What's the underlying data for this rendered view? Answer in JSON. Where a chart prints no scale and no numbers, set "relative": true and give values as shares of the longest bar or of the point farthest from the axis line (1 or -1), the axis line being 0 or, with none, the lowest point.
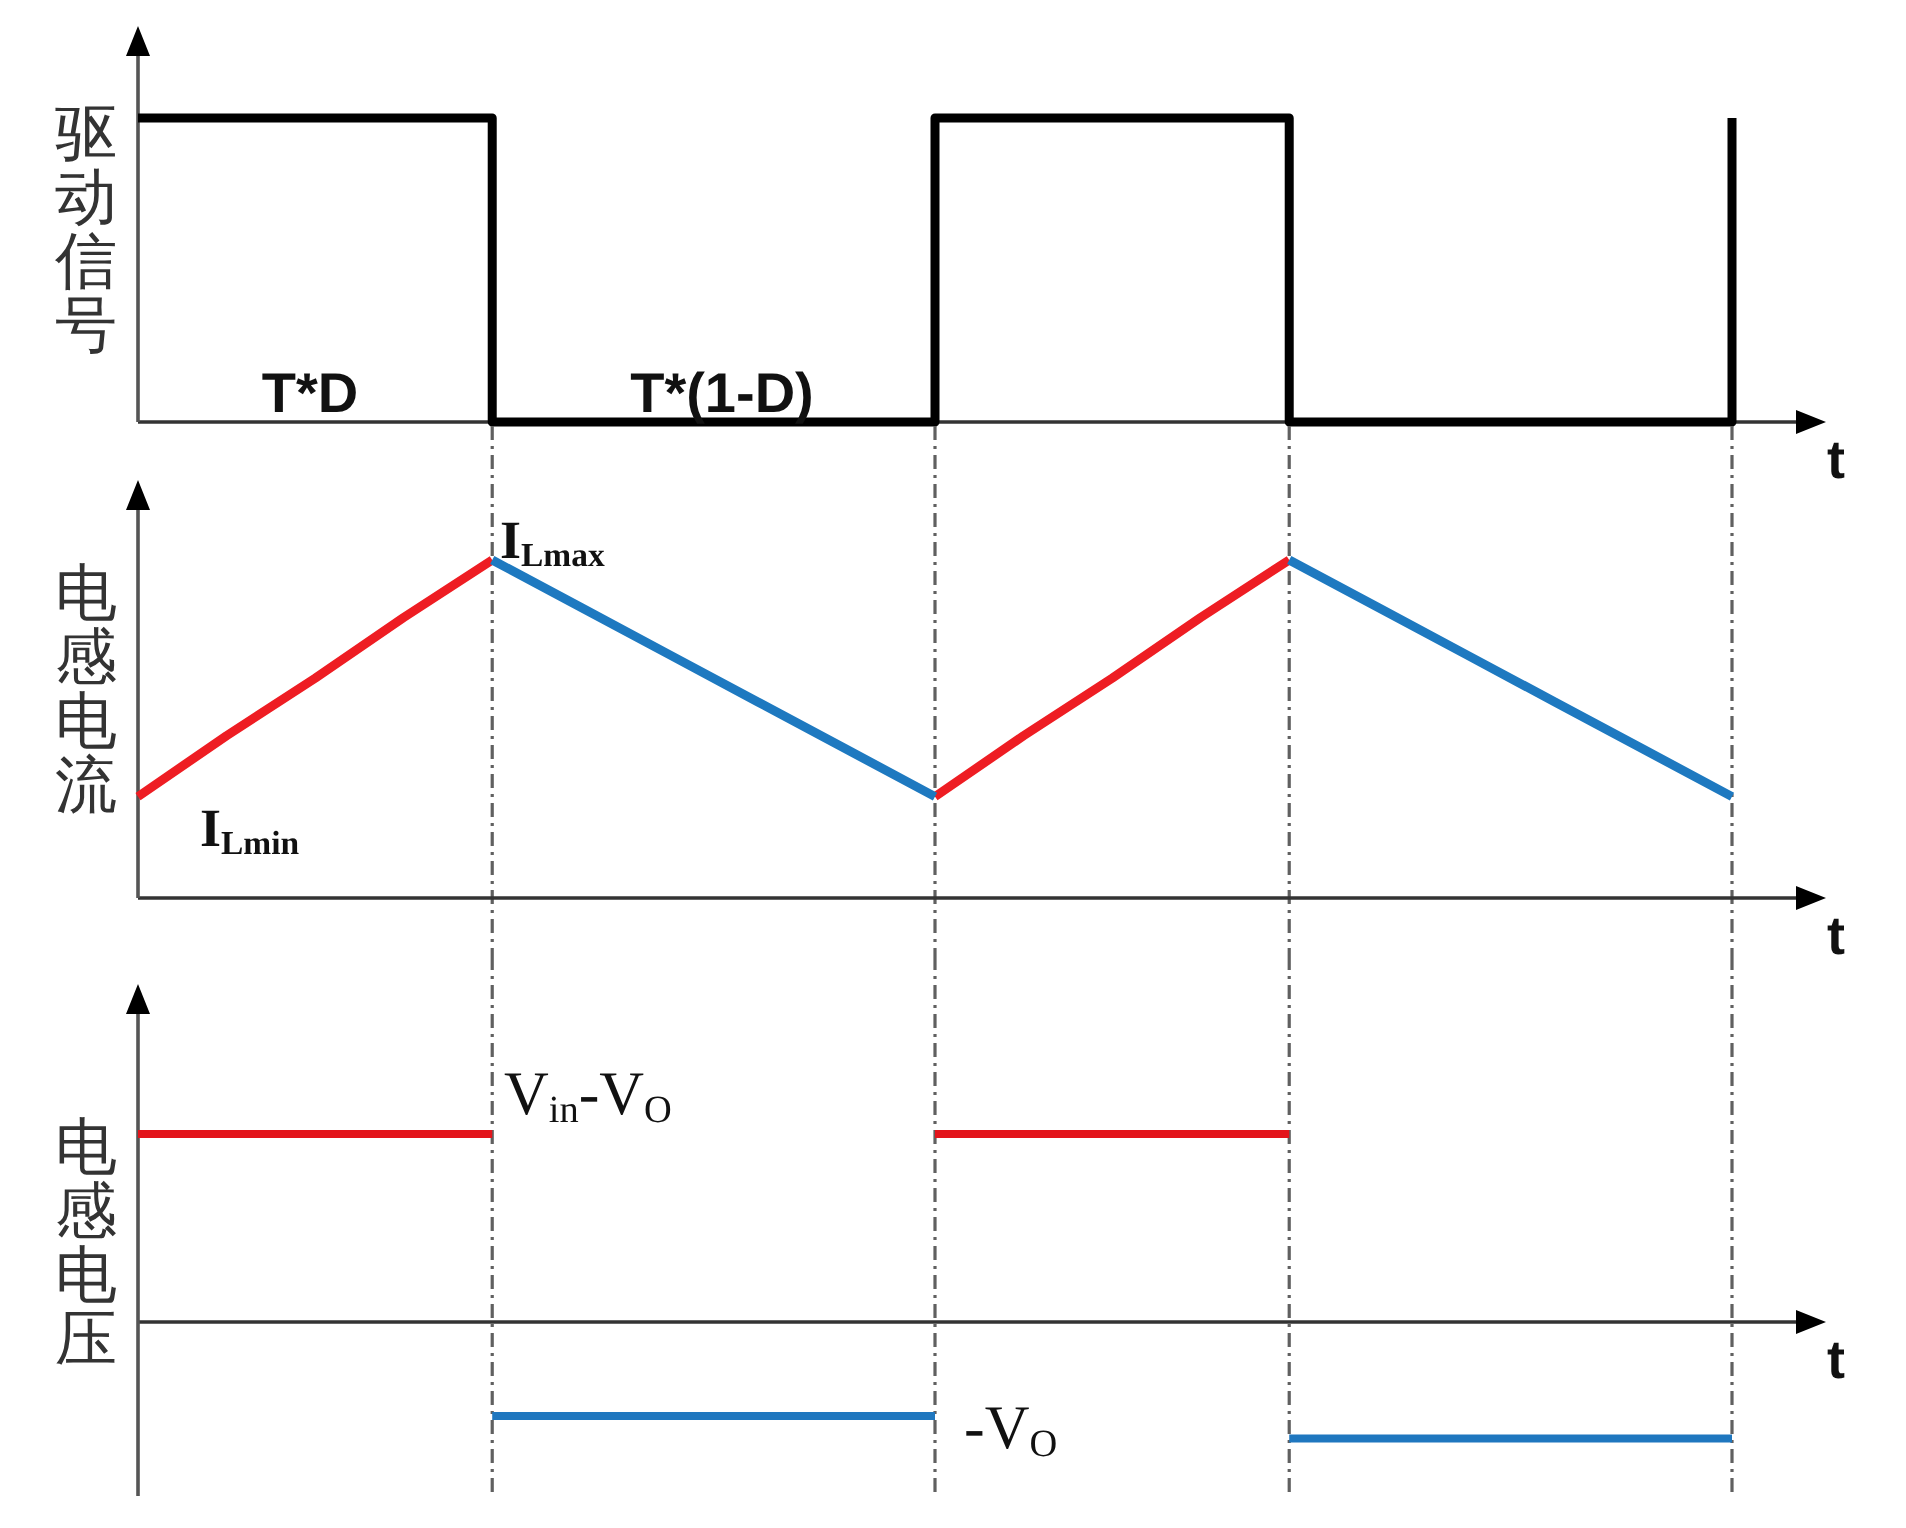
{
  "chart_data": [
    {
      "type": "step",
      "ylabel": "驱动信号",
      "xlabel": "t",
      "relative": true,
      "categories": [
        null,
        null,
        null,
        null,
        null,
        null,
        null,
        null,
        null,
        null,
        null,
        null,
        null,
        null,
        null,
        null,
        null,
        null,
        null
      ],
      "values": [
        1,
        1,
        1,
        1,
        0,
        0,
        0,
        0,
        0,
        1,
        1,
        1,
        1,
        0,
        0,
        0,
        0,
        0,
        1
      ],
      "color": "#000000",
      "annotations": [
        "T*D",
        "T*(1-D)"
      ]
    },
    {
      "type": "line",
      "ylabel": "电感电流",
      "xlabel": "t",
      "relative": true,
      "grid": "x",
      "categories": [
        null,
        null,
        null,
        null,
        null,
        null,
        null,
        null,
        null,
        null,
        null,
        null,
        null,
        null,
        null,
        null,
        null,
        null,
        null
      ],
      "series": [
        {
          "color": "#ee1d23",
          "values": [
            0.3,
            0.48,
            0.65,
            0.83,
            1,
            null,
            null,
            null,
            null,
            0.3,
            0.48,
            0.65,
            0.83,
            1,
            null,
            null,
            null,
            null,
            null
          ]
        },
        {
          "color": "#1e79c0",
          "values": [
            null,
            null,
            null,
            null,
            1,
            0.86,
            0.72,
            0.58,
            0.44,
            0.3,
            null,
            null,
            null,
            1,
            0.86,
            0.72,
            0.58,
            0.44,
            0.3
          ]
        }
      ],
      "annotations": [
        "I$_{Lmax}$",
        "I$_{Lmin}$"
      ]
    },
    {
      "type": "line",
      "ylabel": "电感电压",
      "xlabel": "t",
      "relative": true,
      "grid": "x",
      "categories": [
        null,
        null,
        null,
        null,
        null,
        null,
        null,
        null,
        null,
        null,
        null,
        null,
        null,
        null,
        null,
        null,
        null,
        null,
        null
      ],
      "series": [
        {
          "color": "#e3141b",
          "values": [
            1,
            1,
            1,
            1,
            1,
            null,
            null,
            null,
            null,
            1,
            1,
            1,
            1,
            1,
            null,
            null,
            null,
            null,
            null
          ]
        },
        {
          "color": "#1f77bf",
          "values": [
            null,
            null,
            null,
            null,
            -0.5,
            -0.5,
            -0.5,
            -0.5,
            -0.5,
            -0.5,
            null,
            null,
            null,
            -0.62,
            -0.62,
            -0.62,
            -0.62,
            -0.62,
            -0.62
          ]
        }
      ],
      "annotations": [
        "V$_{in}$-V$_{O}$",
        "-V$_{O}$"
      ]
    }
  ]
}
